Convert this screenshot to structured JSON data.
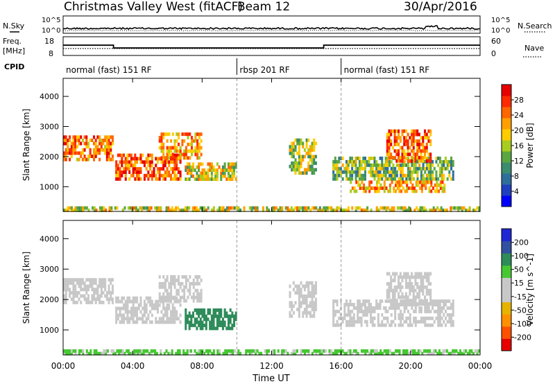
{
  "header": {
    "title": "Christmas Valley West (fitACF)",
    "beam": "Beam 12",
    "date": "30/Apr/2016"
  },
  "noise_panel": {
    "left_label": "N.Sky",
    "right_label": "N.Search",
    "left_ticks": [
      "10^5",
      "10^0"
    ],
    "right_ticks": [
      "10^5",
      "10^0"
    ]
  },
  "freq_panel": {
    "left_label_1": "Freq.",
    "left_label_2": "[MHz]",
    "right_label": "Nave",
    "left_ticks": [
      "18",
      "8"
    ],
    "right_ticks": [
      "60",
      "0"
    ],
    "freq_steps": [
      {
        "t0": 0,
        "t1": 2.9,
        "v": 13.5
      },
      {
        "t0": 2.9,
        "t1": 15.0,
        "v": 12.0
      },
      {
        "t0": 15.0,
        "t1": 24,
        "v": 13.5
      }
    ]
  },
  "cpid": {
    "label": "CPID",
    "segments": [
      {
        "t0": 0,
        "t1": 10,
        "text": "normal (fast) 151 RF"
      },
      {
        "t0": 10,
        "t1": 16,
        "text": "rbsp 201 RF"
      },
      {
        "t0": 16,
        "t1": 24,
        "text": "normal (fast) 151 RF"
      }
    ]
  },
  "colors": {
    "power": [
      "#0000ff",
      "#1f3fbf",
      "#2e6e9a",
      "#3c8c6e",
      "#5aa640",
      "#a8cc20",
      "#ffcc00",
      "#ffa000",
      "#ff6600",
      "#ff2a00",
      "#e60000"
    ],
    "velocity": [
      "#e60000",
      "#ff5000",
      "#ff9000",
      "#e6b400",
      "#c8c8c8",
      "#c8c8c8",
      "#46c832",
      "#2e8c5a",
      "#3250a0",
      "#1e28d2"
    ]
  },
  "chart_data": [
    {
      "type": "heatmap",
      "name": "power",
      "ylabel": "Slant Range [km]",
      "xlabel": "",
      "ylim": [
        180,
        4600
      ],
      "yticks": [
        "1000",
        "2000",
        "3000",
        "4000"
      ],
      "cbar_label": "Power [dB]",
      "cbar_ticks": [
        "4",
        "8",
        "12",
        "16",
        "20",
        "24",
        "28"
      ],
      "cbar_range": [
        0,
        32
      ],
      "regions": [
        {
          "t0": 0.0,
          "t1": 2.9,
          "r0": 1850,
          "r1": 2700,
          "v": 24
        },
        {
          "t0": 3.0,
          "t1": 6.8,
          "r0": 1200,
          "r1": 2100,
          "v": 26
        },
        {
          "t0": 5.5,
          "t1": 8.0,
          "r0": 1900,
          "r1": 2800,
          "v": 22
        },
        {
          "t0": 7.0,
          "t1": 10.0,
          "r0": 1200,
          "r1": 1800,
          "v": 18
        },
        {
          "t0": 13.0,
          "t1": 14.6,
          "r0": 1400,
          "r1": 2600,
          "v": 16
        },
        {
          "t0": 15.5,
          "t1": 22.5,
          "r0": 1200,
          "r1": 2000,
          "v": 14
        },
        {
          "t0": 16.5,
          "t1": 22.0,
          "r0": 800,
          "r1": 1200,
          "v": 22
        },
        {
          "t0": 18.6,
          "t1": 21.2,
          "r0": 1800,
          "r1": 2900,
          "v": 25
        },
        {
          "t0": 0.0,
          "t1": 24.0,
          "r0": 180,
          "r1": 330,
          "v": 18
        }
      ]
    },
    {
      "type": "heatmap",
      "name": "velocity",
      "ylabel": "Slant Range [km]",
      "xlabel": "Time UT",
      "ylim": [
        180,
        4600
      ],
      "yticks": [
        "1000",
        "2000",
        "3000",
        "4000"
      ],
      "xticks": [
        "00:00",
        "04:00",
        "08:00",
        "12:00",
        "16:00",
        "20:00",
        "00:00"
      ],
      "xlim_hours": [
        0,
        24
      ],
      "cbar_label": "Velocity [m s^-1]",
      "cbar_ticks": [
        "-200",
        "-100",
        "-50",
        "-15",
        "15",
        "50",
        "100",
        "200"
      ],
      "regions": [
        {
          "t0": 0.0,
          "t1": 2.9,
          "r0": 1850,
          "r1": 2700,
          "v": 0
        },
        {
          "t0": 3.0,
          "t1": 6.8,
          "r0": 1200,
          "r1": 2100,
          "v": 5
        },
        {
          "t0": 5.5,
          "t1": 8.0,
          "r0": 1900,
          "r1": 2800,
          "v": 0
        },
        {
          "t0": 7.0,
          "t1": 10.0,
          "r0": 1000,
          "r1": 1700,
          "v": 60
        },
        {
          "t0": 13.0,
          "t1": 14.6,
          "r0": 1400,
          "r1": 2600,
          "v": 0
        },
        {
          "t0": 15.5,
          "t1": 22.5,
          "r0": 1100,
          "r1": 2000,
          "v": 0
        },
        {
          "t0": 18.6,
          "t1": 21.2,
          "r0": 1800,
          "r1": 2900,
          "v": 0
        },
        {
          "t0": 0.0,
          "t1": 24.0,
          "r0": 180,
          "r1": 350,
          "v": 20
        }
      ]
    }
  ]
}
